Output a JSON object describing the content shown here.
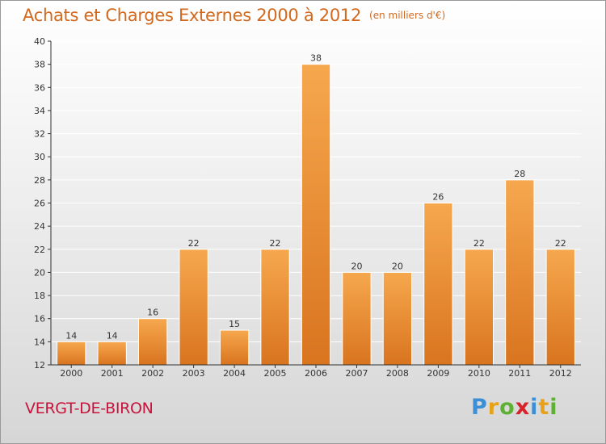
{
  "title": "Achats et Charges Externes 2000 à 2012",
  "subtitle": "(en milliers d'€)",
  "place": "VERGT-DE-BIRON",
  "logo": {
    "letters": [
      {
        "char": "P",
        "color": "#3b8fd6"
      },
      {
        "char": "r",
        "color": "#e8a21a"
      },
      {
        "char": "o",
        "color": "#5fb136"
      },
      {
        "char": "x",
        "color": "#d8232a"
      },
      {
        "char": "i",
        "color": "#3b8fd6"
      },
      {
        "char": "t",
        "color": "#e8a21a"
      },
      {
        "char": "i",
        "color": "#5fb136"
      }
    ]
  },
  "colors": {
    "bar_top": "#f6a84e",
    "bar_bottom": "#d9741f",
    "bar_edge": "#ffffff",
    "axis": "#333333",
    "grid": "#ffffff"
  },
  "chart_data": {
    "type": "bar",
    "categories": [
      "2000",
      "2001",
      "2002",
      "2003",
      "2004",
      "2005",
      "2006",
      "2007",
      "2008",
      "2009",
      "2010",
      "2011",
      "2012"
    ],
    "values": [
      14,
      14,
      16,
      22,
      15,
      22,
      38,
      20,
      20,
      26,
      22,
      28,
      22
    ],
    "ylim": [
      12,
      40
    ],
    "yticks": [
      12,
      14,
      16,
      18,
      20,
      22,
      24,
      26,
      28,
      30,
      32,
      34,
      36,
      38,
      40
    ],
    "grid": true,
    "legend": "none"
  }
}
